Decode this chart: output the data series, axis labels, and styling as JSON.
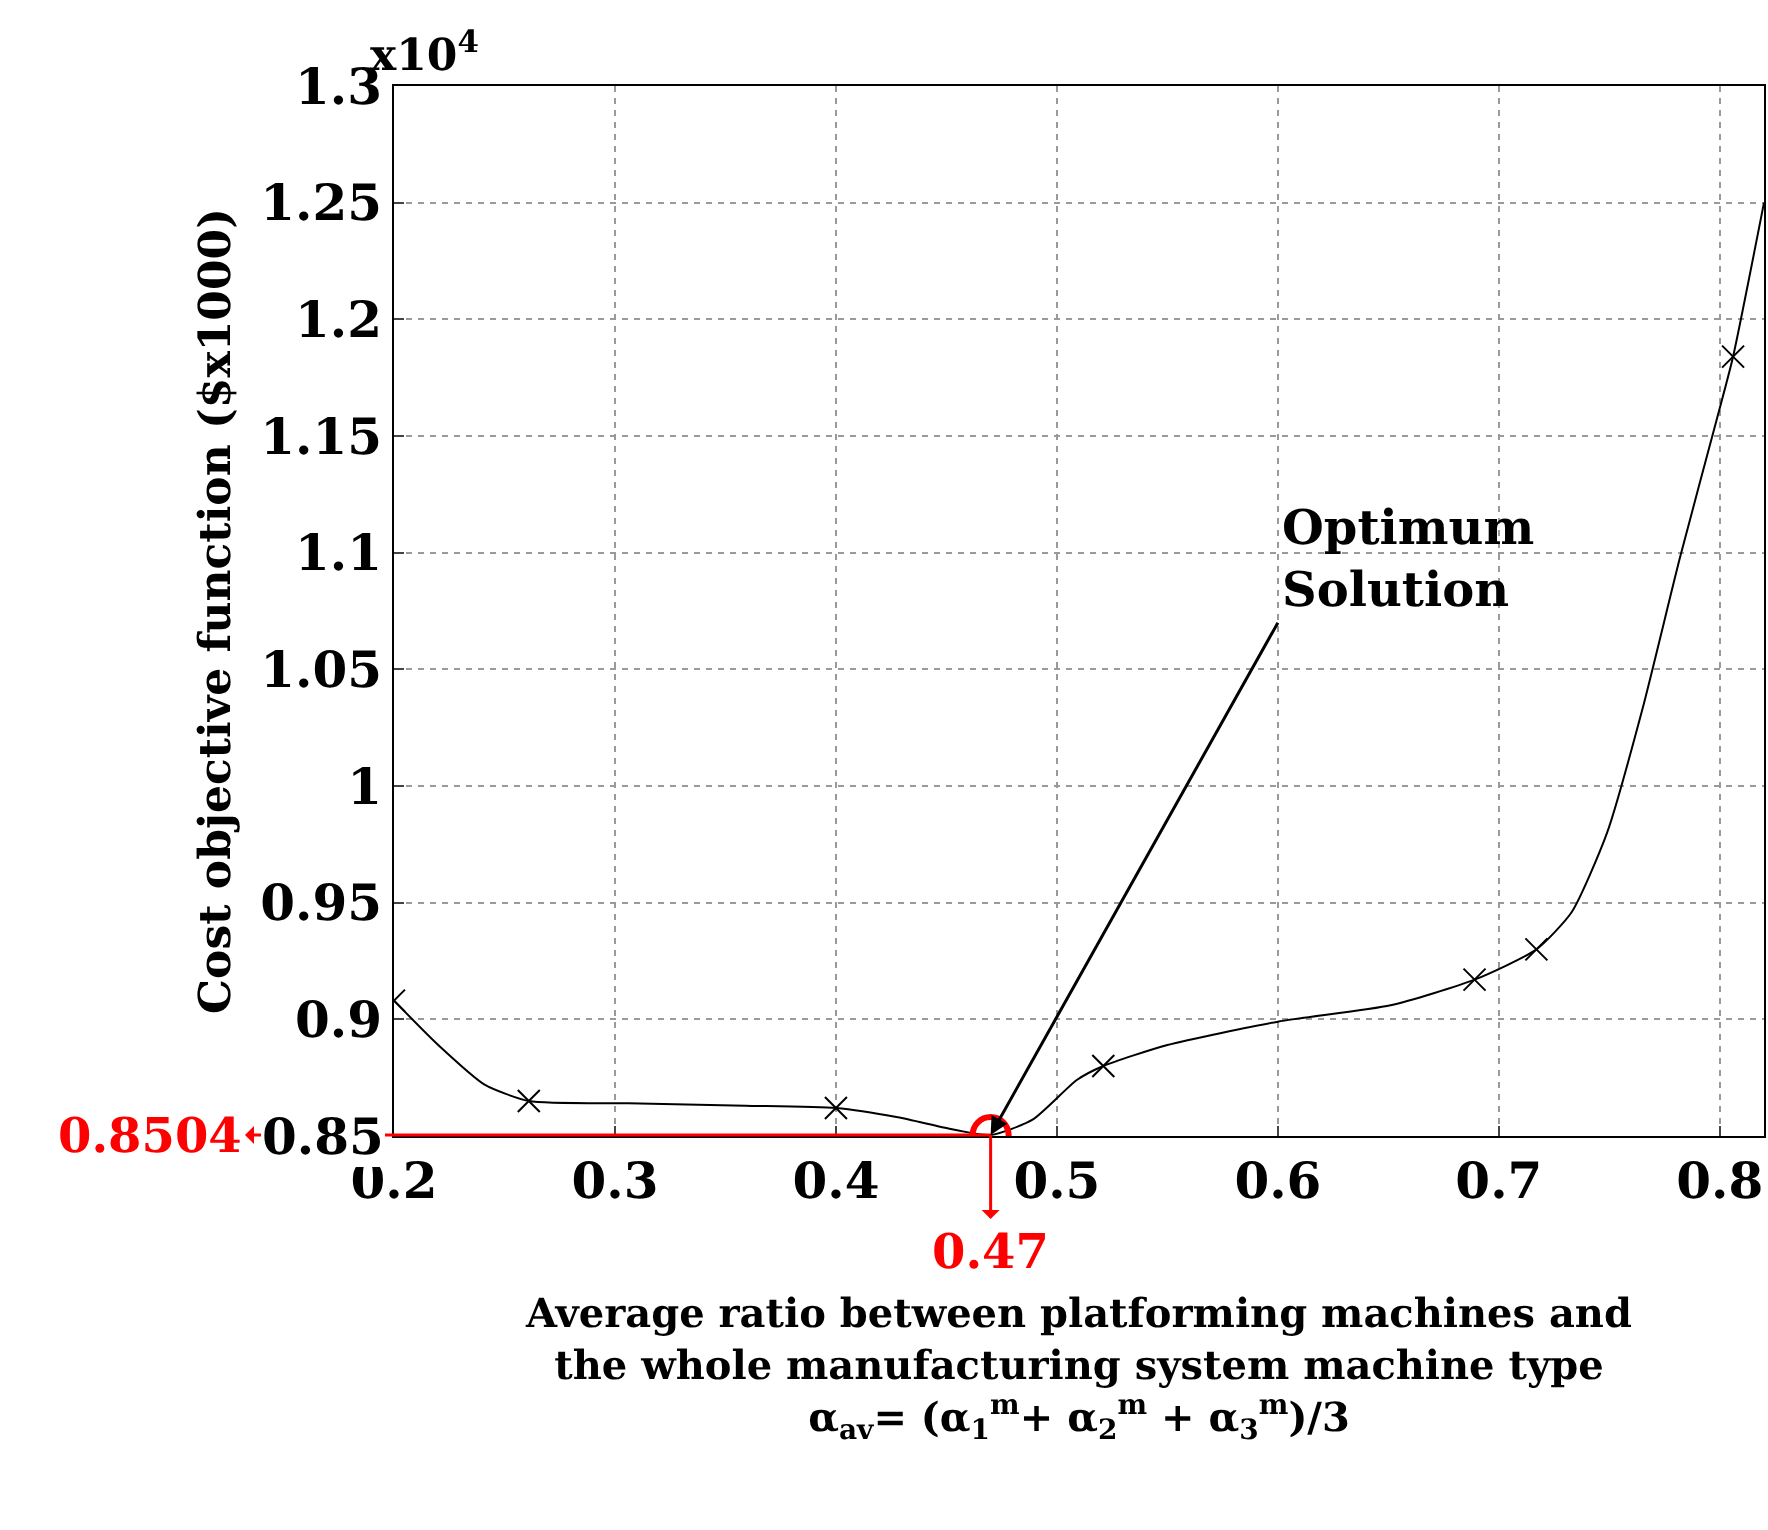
{
  "chart_data": {
    "type": "line",
    "xlabel": "Average ratio between platforming machines and\nthe whole manufacturing system machine type\nα$_{av}$= (α$_{1}$$^{m}$+ α$_{2}$$^{m}$ + α$_{3}$$^{m}$)/3",
    "ylabel": "Cost objective function ($x1000)",
    "series": [
      {
        "color": "#000000",
        "marker": "none",
        "x": [
          0.2,
          0.22,
          0.241,
          0.261,
          0.306,
          0.359,
          0.4,
          0.428,
          0.452,
          0.47,
          0.489,
          0.509,
          0.521,
          0.55,
          0.6,
          0.651,
          0.689,
          0.717,
          0.733,
          0.749,
          0.765,
          0.782,
          0.8,
          0.806,
          0.82
        ],
        "values": [
          0.908,
          0.889,
          0.872,
          0.865,
          0.864,
          0.863,
          0.862,
          0.858,
          0.853,
          0.8504,
          0.857,
          0.874,
          0.88,
          0.889,
          0.899,
          0.906,
          0.917,
          0.93,
          0.946,
          0.98,
          1.033,
          1.098,
          1.162,
          1.184,
          1.25
        ]
      },
      {
        "type": "scatter",
        "color": "#000000",
        "marker": "cross",
        "x": [
          0.2,
          0.261,
          0.4,
          0.521,
          0.689,
          0.717,
          0.806
        ],
        "values": [
          0.908,
          0.865,
          0.862,
          0.88,
          0.917,
          0.93,
          1.184
        ]
      }
    ],
    "xlim": [
      0.2,
      0.82
    ],
    "ylim": [
      0.85,
      1.3
    ],
    "xticks": [
      0.2,
      0.3,
      0.4,
      0.5,
      0.6,
      0.7,
      0.8
    ],
    "yticks": [
      0.85,
      0.9,
      0.95,
      1,
      1.05,
      1.1,
      1.15,
      1.2,
      1.25,
      1.3
    ],
    "grid": true,
    "legend": false,
    "annotations": [
      "x10$^{4}$",
      {
        "text": "Optimum\nSolution",
        "x": 0.47,
        "y": 0.8504
      },
      "0.8504",
      "0.47"
    ]
  }
}
